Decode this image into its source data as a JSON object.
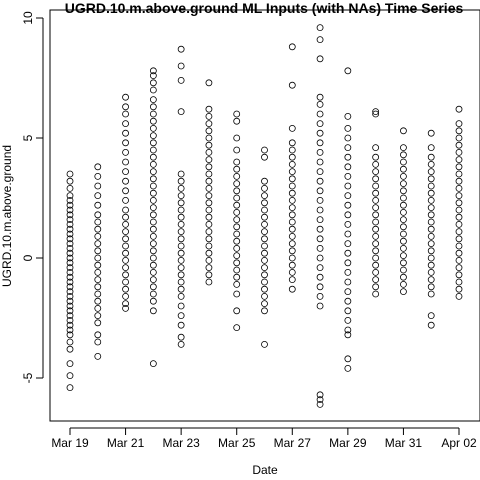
{
  "chart_data": {
    "type": "scatter",
    "title": "UGRD.10.m.above.ground ML Inputs (with NAs) Time Series",
    "xlabel": "Date",
    "ylabel": "UGRD.10.m.above.ground",
    "x_is_date": true,
    "xlim": [
      "2016-03-18",
      "2016-04-02"
    ],
    "ylim": [
      -6.3,
      10.0
    ],
    "x_ticks": [
      {
        "date": "2016-03-19",
        "label": "Mar 19"
      },
      {
        "date": "2016-03-21",
        "label": "Mar 21"
      },
      {
        "date": "2016-03-23",
        "label": "Mar 23"
      },
      {
        "date": "2016-03-25",
        "label": "Mar 25"
      },
      {
        "date": "2016-03-27",
        "label": "Mar 27"
      },
      {
        "date": "2016-03-29",
        "label": "Mar 29"
      },
      {
        "date": "2016-03-31",
        "label": "Mar 31"
      },
      {
        "date": "2016-04-02",
        "label": "Apr 02"
      }
    ],
    "y_ticks": [
      {
        "value": -5,
        "label": "-5"
      },
      {
        "value": 0,
        "label": "0"
      },
      {
        "value": 5,
        "label": "5"
      },
      {
        "value": 10,
        "label": "10"
      }
    ],
    "grid": false,
    "marker": "open-circle",
    "series": [
      {
        "date": "2016-03-19",
        "values": [
          3.5,
          3.2,
          2.9,
          2.6,
          2.4,
          2.2,
          2.0,
          1.8,
          1.6,
          1.4,
          1.2,
          1.0,
          0.8,
          0.6,
          0.4,
          0.2,
          0.0,
          -0.2,
          -0.4,
          -0.6,
          -0.8,
          -1.0,
          -1.2,
          -1.4,
          -1.6,
          -1.8,
          -2.0,
          -2.2,
          -2.4,
          -2.6,
          -2.8,
          -3.0,
          -3.2,
          -3.5,
          -3.8,
          -4.4,
          -4.9,
          -5.4
        ]
      },
      {
        "date": "2016-03-20",
        "values": [
          3.8,
          3.4,
          3.0,
          2.6,
          2.2,
          1.8,
          1.5,
          1.2,
          0.9,
          0.6,
          0.3,
          0.0,
          -0.3,
          -0.6,
          -0.9,
          -1.2,
          -1.5,
          -1.8,
          -2.1,
          -2.4,
          -2.7,
          -3.2,
          -3.5,
          -4.1
        ]
      },
      {
        "date": "2016-03-21",
        "values": [
          6.7,
          6.3,
          6.0,
          5.6,
          5.2,
          4.8,
          4.4,
          4.0,
          3.6,
          3.2,
          2.8,
          2.4,
          2.0,
          1.7,
          1.4,
          1.1,
          0.8,
          0.5,
          0.2,
          -0.1,
          -0.4,
          -0.7,
          -1.0,
          -1.3,
          -1.6,
          -1.9,
          -2.1
        ]
      },
      {
        "date": "2016-03-22",
        "values": [
          7.8,
          7.6,
          7.3,
          7.0,
          6.6,
          6.3,
          6.0,
          5.7,
          5.4,
          5.1,
          4.8,
          4.5,
          4.2,
          3.9,
          3.6,
          3.3,
          3.0,
          2.7,
          2.4,
          2.1,
          1.8,
          1.5,
          1.2,
          0.9,
          0.6,
          0.3,
          0.0,
          -0.3,
          -0.6,
          -0.9,
          -1.2,
          -1.5,
          -1.8,
          -2.2,
          -4.4
        ]
      },
      {
        "date": "2016-03-23",
        "values": [
          8.7,
          8.0,
          7.4,
          6.1,
          3.5,
          3.2,
          2.9,
          2.6,
          2.3,
          2.0,
          1.7,
          1.4,
          1.1,
          0.8,
          0.5,
          0.2,
          -0.1,
          -0.4,
          -0.7,
          -1.0,
          -1.3,
          -1.6,
          -2.0,
          -2.4,
          -2.8,
          -3.3,
          -3.6
        ]
      },
      {
        "date": "2016-03-24",
        "values": [
          7.3,
          6.2,
          5.9,
          5.6,
          5.3,
          5.0,
          4.7,
          4.4,
          4.1,
          3.8,
          3.5,
          3.2,
          2.9,
          2.6,
          2.3,
          2.0,
          1.7,
          1.4,
          1.1,
          0.8,
          0.5,
          0.2,
          -0.1,
          -0.4,
          -0.7,
          -1.0
        ]
      },
      {
        "date": "2016-03-25",
        "values": [
          6.0,
          5.7,
          5.0,
          4.5,
          4.0,
          3.7,
          3.4,
          3.1,
          2.8,
          2.5,
          2.2,
          1.9,
          1.6,
          1.3,
          1.0,
          0.7,
          0.4,
          0.1,
          -0.2,
          -0.5,
          -0.8,
          -1.1,
          -1.5,
          -2.2,
          -2.9
        ]
      },
      {
        "date": "2016-03-26",
        "values": [
          4.5,
          4.2,
          3.2,
          2.9,
          2.6,
          2.3,
          2.0,
          1.7,
          1.4,
          1.1,
          0.8,
          0.5,
          0.2,
          -0.1,
          -0.4,
          -0.7,
          -1.0,
          -1.3,
          -1.6,
          -1.9,
          -2.2,
          -3.6
        ]
      },
      {
        "date": "2016-03-27",
        "values": [
          8.8,
          7.2,
          5.4,
          4.8,
          4.5,
          4.2,
          3.9,
          3.6,
          3.3,
          3.0,
          2.7,
          2.4,
          2.1,
          1.8,
          1.5,
          1.2,
          0.9,
          0.6,
          0.3,
          0.0,
          -0.3,
          -0.6,
          -0.9,
          -1.3
        ]
      },
      {
        "date": "2016-03-28",
        "values": [
          9.6,
          9.1,
          8.3,
          6.7,
          6.4,
          6.0,
          5.6,
          5.2,
          4.8,
          4.4,
          4.0,
          3.6,
          3.2,
          2.8,
          2.4,
          2.0,
          1.6,
          1.2,
          0.8,
          0.4,
          0.0,
          -0.4,
          -0.8,
          -1.2,
          -1.6,
          -2.0,
          -5.7,
          -5.9,
          -6.1
        ]
      },
      {
        "date": "2016-03-29",
        "values": [
          5.9,
          5.4,
          5.0,
          4.6,
          4.2,
          3.8,
          3.4,
          3.0,
          2.6,
          2.2,
          1.8,
          1.4,
          1.0,
          0.6,
          0.2,
          -0.2,
          -0.6,
          -1.0,
          -1.4,
          -1.8,
          -2.2,
          -2.6,
          -3.0,
          -3.2,
          -4.2,
          -4.6
        ]
      },
      {
        "date": "2016-03-29",
        "values": [
          7.8
        ]
      },
      {
        "date": "2016-03-30",
        "values": [
          6.1,
          6.0,
          4.6,
          4.2,
          3.9,
          3.6,
          3.3,
          3.0,
          2.7,
          2.4,
          2.1,
          1.8,
          1.5,
          1.2,
          0.9,
          0.6,
          0.3,
          0.0,
          -0.3,
          -0.6,
          -0.9,
          -1.2,
          -1.5
        ]
      },
      {
        "date": "2016-03-31",
        "values": [
          5.3,
          4.6,
          4.3,
          4.0,
          3.7,
          3.4,
          3.1,
          2.8,
          2.5,
          2.2,
          1.9,
          1.6,
          1.3,
          1.0,
          0.7,
          0.4,
          0.1,
          -0.2,
          -0.5,
          -0.8,
          -1.1,
          -1.4
        ]
      },
      {
        "date": "2016-04-01",
        "values": [
          5.2,
          4.6,
          4.2,
          3.9,
          3.6,
          3.3,
          3.0,
          2.7,
          2.4,
          2.1,
          1.8,
          1.5,
          1.2,
          0.9,
          0.6,
          0.3,
          0.0,
          -0.3,
          -0.6,
          -0.9,
          -1.2,
          -1.5,
          -2.4,
          -2.8
        ]
      },
      {
        "date": "2016-04-02",
        "values": [
          6.2,
          5.6,
          5.3,
          5.0,
          4.7,
          4.4,
          4.1,
          3.8,
          3.5,
          3.2,
          2.9,
          2.6,
          2.3,
          2.0,
          1.7,
          1.4,
          1.1,
          0.8,
          0.5,
          0.2,
          -0.1,
          -0.4,
          -0.7,
          -1.0,
          -1.3,
          -1.6
        ]
      }
    ]
  }
}
